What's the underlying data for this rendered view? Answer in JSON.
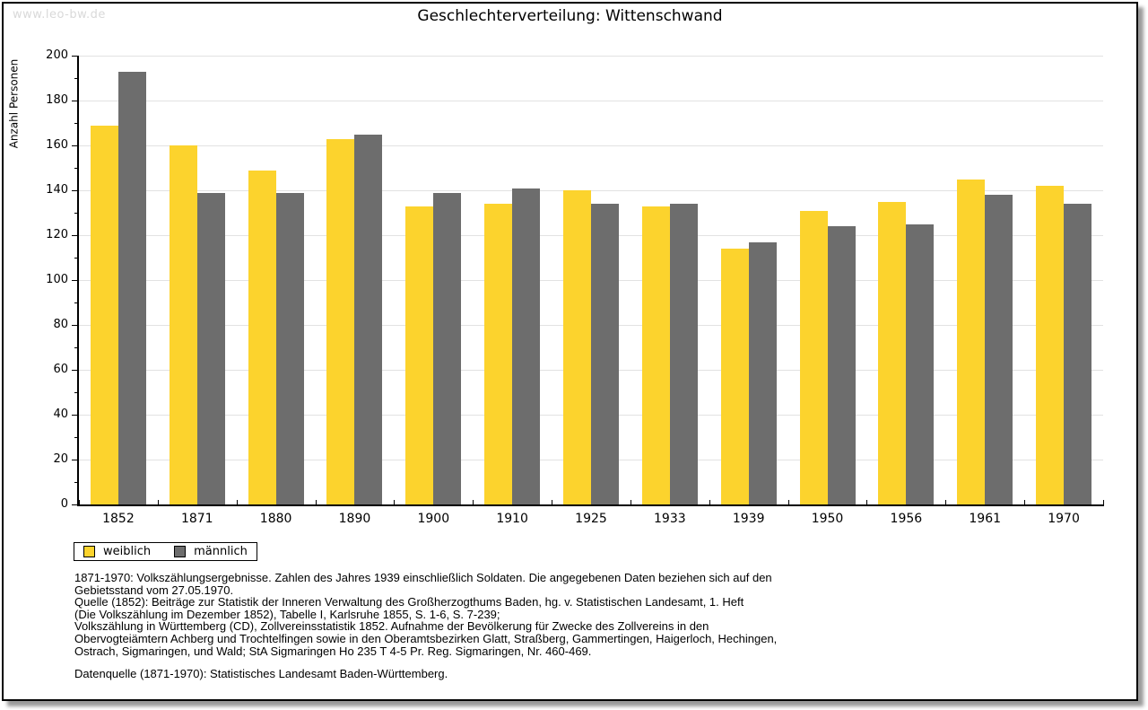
{
  "watermark": "www.leo-bw.de",
  "title": "Geschlechterverteilung: Wittenschwand",
  "chart_data": {
    "type": "bar",
    "title": "Geschlechterverteilung: Wittenschwand",
    "xlabel": "",
    "ylabel": "Anzahl Personen",
    "categories": [
      "1852",
      "1871",
      "1880",
      "1890",
      "1900",
      "1910",
      "1925",
      "1933",
      "1939",
      "1950",
      "1956",
      "1961",
      "1970"
    ],
    "series": [
      {
        "name": "weiblich",
        "color": "#fcd32d",
        "values": [
          169,
          160,
          149,
          163,
          133,
          134,
          140,
          133,
          114,
          131,
          135,
          145,
          142
        ]
      },
      {
        "name": "männlich",
        "color": "#6d6d6d",
        "values": [
          193,
          139,
          139,
          165,
          139,
          141,
          134,
          134,
          117,
          124,
          125,
          138,
          134
        ]
      }
    ],
    "ylim": [
      0,
      200
    ],
    "ytick_step": 20,
    "yminor_step": 10,
    "grid": true,
    "gridline_color": "#e2e2e2",
    "legend_position": "bottom-left"
  },
  "footer": {
    "notes": "1871-1970: Volkszählungsergebnisse. Zahlen des Jahres 1939 einschließlich Soldaten. Die angegebenen Daten beziehen sich auf den\nGebietsstand vom 27.05.1970.\nQuelle (1852): Beiträge zur Statistik der Inneren Verwaltung des Großherzogthums Baden, hg. v. Statistischen Landesamt, 1. Heft\n(Die Volkszählung im Dezember 1852), Tabelle I, Karlsruhe 1855, S. 1-6, S. 7-239;\nVolkszählung in Württemberg (CD), Zollvereinsstatistik 1852. Aufnahme der Bevölkerung für Zwecke des Zollvereins in den\nObervogteiämtern Achberg und Trochtelfingen sowie in den Oberamtsbezirken Glatt, Straßberg, Gammertingen, Haigerloch, Hechingen,\nOstrach, Sigmaringen, und Wald; StA Sigmaringen Ho 235 T 4-5 Pr. Reg. Sigmaringen, Nr. 460-469.",
    "datasource": "Datenquelle (1871-1970): Statistisches Landesamt Baden-Württemberg."
  }
}
